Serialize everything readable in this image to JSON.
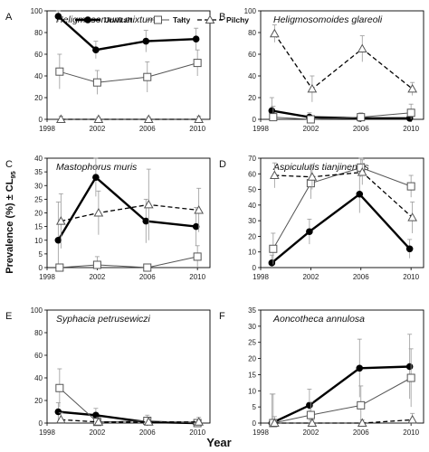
{
  "figure": {
    "ylabel": "Prevalence (%) ± CL",
    "ylabel_sub": "95",
    "xlabel": "Year"
  },
  "legend": [
    {
      "name": "Urwitałt",
      "style": "solid-thick",
      "marker": "filled-circle"
    },
    {
      "name": "Tałty",
      "style": "solid-thin",
      "marker": "open-square"
    },
    {
      "name": "Pilchy",
      "style": "dashed",
      "marker": "open-triangle"
    }
  ],
  "chart_data": [
    {
      "type": "line",
      "letter": "A",
      "title": "Heligmosomum mixtum",
      "ylim": [
        0,
        100
      ],
      "yticks": [
        "0",
        "20",
        "40",
        "60",
        "80",
        "100"
      ],
      "xlim": [
        1998,
        2011
      ],
      "xticks": [
        "1998",
        "2002",
        "2006",
        "2010"
      ],
      "x": [
        1999,
        2002,
        2006,
        2010
      ],
      "series": [
        {
          "name": "Urwitałt",
          "values": [
            95,
            64,
            72,
            74
          ],
          "err": [
            5,
            8,
            10,
            10
          ]
        },
        {
          "name": "Tałty",
          "values": [
            44,
            34,
            39,
            52
          ],
          "err": [
            16,
            11,
            14,
            12
          ]
        },
        {
          "name": "Pilchy",
          "values": [
            0,
            0,
            0,
            0
          ],
          "err": [
            3,
            2,
            2,
            3
          ]
        }
      ]
    },
    {
      "type": "line",
      "letter": "B",
      "title": "Heligmosomoides glareoli",
      "ylim": [
        0,
        100
      ],
      "yticks": [
        "0",
        "20",
        "40",
        "60",
        "80",
        "100"
      ],
      "xlim": [
        1998,
        2011
      ],
      "xticks": [
        "1998",
        "2002",
        "2006",
        "2010"
      ],
      "x": [
        1999,
        2002,
        2006,
        2010
      ],
      "series": [
        {
          "name": "Urwitałt",
          "values": [
            8,
            2,
            1,
            1
          ],
          "err": [
            12,
            4,
            3,
            3
          ]
        },
        {
          "name": "Tałty",
          "values": [
            2,
            0,
            2,
            6
          ],
          "err": [
            10,
            3,
            4,
            8
          ]
        },
        {
          "name": "Pilchy",
          "values": [
            79,
            28,
            65,
            28
          ],
          "err": [
            8,
            12,
            12,
            6
          ]
        }
      ]
    },
    {
      "type": "line",
      "letter": "C",
      "title": "Mastophorus muris",
      "ylim": [
        0,
        40
      ],
      "yticks": [
        "0",
        "5",
        "10",
        "15",
        "20",
        "25",
        "30",
        "35",
        "40"
      ],
      "xlim": [
        1998,
        2011
      ],
      "xticks": [
        "1998",
        "2002",
        "2006",
        "2010"
      ],
      "x": [
        1999,
        2002,
        2006,
        2010
      ],
      "series": [
        {
          "name": "Urwitałt",
          "values": [
            10,
            33,
            17,
            15
          ],
          "err": [
            14,
            7,
            8,
            7
          ]
        },
        {
          "name": "Tałty",
          "values": [
            0,
            1,
            0,
            4
          ],
          "err": [
            1,
            3,
            1,
            4
          ]
        },
        {
          "name": "Pilchy",
          "values": [
            17,
            20,
            23,
            21
          ],
          "err": [
            10,
            8,
            13,
            8
          ]
        }
      ]
    },
    {
      "type": "line",
      "letter": "D",
      "title": "Aspiculuris tianjinensis",
      "ylim": [
        0,
        70
      ],
      "yticks": [
        "0",
        "10",
        "20",
        "30",
        "40",
        "50",
        "60",
        "70"
      ],
      "xlim": [
        1998,
        2011
      ],
      "xticks": [
        "1998",
        "2002",
        "2006",
        "2010"
      ],
      "x": [
        1999,
        2002,
        2006,
        2010
      ],
      "series": [
        {
          "name": "Urwitałt",
          "values": [
            3,
            23,
            47,
            12
          ],
          "err": [
            5,
            8,
            12,
            6
          ]
        },
        {
          "name": "Tałty",
          "values": [
            12,
            54,
            64,
            52
          ],
          "err": [
            10,
            10,
            6,
            7
          ]
        },
        {
          "name": "Pilchy",
          "values": [
            59,
            58,
            61,
            32
          ],
          "err": [
            8,
            8,
            8,
            10
          ]
        }
      ]
    },
    {
      "type": "line",
      "letter": "E",
      "title": "Syphacia petrusewiczi",
      "ylim": [
        0,
        100
      ],
      "yticks": [
        "0",
        "20",
        "40",
        "60",
        "80",
        "100"
      ],
      "xlim": [
        1998,
        2011
      ],
      "xticks": [
        "1998",
        "2002",
        "2006",
        "2010"
      ],
      "x": [
        1999,
        2002,
        2006,
        2010
      ],
      "series": [
        {
          "name": "Urwitałt",
          "values": [
            10,
            7,
            1,
            0
          ],
          "err": [
            8,
            6,
            4,
            2
          ]
        },
        {
          "name": "Tałty",
          "values": [
            31,
            1,
            2,
            0
          ],
          "err": [
            17,
            3,
            5,
            2
          ]
        },
        {
          "name": "Pilchy",
          "values": [
            3,
            1,
            1,
            1
          ],
          "err": [
            6,
            4,
            3,
            4
          ]
        }
      ]
    },
    {
      "type": "line",
      "letter": "F",
      "title": "Aoncotheca annulosa",
      "ylim": [
        0,
        35
      ],
      "yticks": [
        "0",
        "5",
        "10",
        "15",
        "20",
        "25",
        "30",
        "35"
      ],
      "xlim": [
        1998,
        2011
      ],
      "xticks": [
        "1998",
        "2002",
        "2006",
        "2010"
      ],
      "x": [
        1999,
        2002,
        2006,
        2010
      ],
      "series": [
        {
          "name": "Urwitałt",
          "values": [
            0,
            5.5,
            17,
            17.5
          ],
          "err": [
            9,
            5,
            9,
            10
          ]
        },
        {
          "name": "Tałty",
          "values": [
            0,
            2.5,
            5.5,
            14
          ],
          "err": [
            9,
            4,
            6,
            9
          ]
        },
        {
          "name": "Pilchy",
          "values": [
            0,
            0,
            0,
            1
          ],
          "err": [
            2,
            1,
            1,
            2
          ]
        }
      ]
    }
  ]
}
